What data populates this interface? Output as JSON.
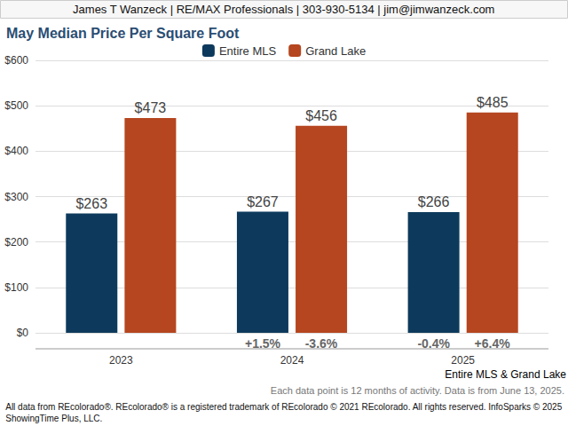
{
  "chart_data": {
    "type": "bar",
    "header": "James T Wanzeck | RE/MAX Professionals | 303-930-5134 | jim@jimwanzeck.com",
    "title": "May Median Price Per Square Foot",
    "categories": [
      "2023",
      "2024",
      "2025"
    ],
    "series": [
      {
        "name": "Entire MLS",
        "color": "#0d3a5c",
        "values": [
          263,
          267,
          266
        ],
        "value_labels": [
          "$263",
          "$267",
          "$266"
        ],
        "changes": [
          null,
          1.5,
          -0.4
        ],
        "change_labels": [
          null,
          "+1.5%",
          "-0.4%"
        ]
      },
      {
        "name": "Grand Lake",
        "color": "#b5461f",
        "values": [
          473,
          456,
          485
        ],
        "value_labels": [
          "$473",
          "$456",
          "$485"
        ],
        "changes": [
          null,
          -3.6,
          6.4
        ],
        "change_labels": [
          null,
          "-3.6%",
          "+6.4%"
        ]
      }
    ],
    "ylim": [
      0,
      600
    ],
    "yticks": [
      {
        "value": 0,
        "label": "$0"
      },
      {
        "value": 100,
        "label": "$100"
      },
      {
        "value": 200,
        "label": "$200"
      },
      {
        "value": 300,
        "label": "$300"
      },
      {
        "value": 400,
        "label": "$400"
      },
      {
        "value": 500,
        "label": "$500"
      },
      {
        "value": 600,
        "label": "$600"
      }
    ],
    "grid": true,
    "legend": "top",
    "data_labels": true,
    "caption_joiner": "&",
    "footnotes": [
      "Each data point is 12 months of activity. Data is from June 13, 2025.",
      "All data from REcolorado®. REcolorado® is a registered trademark of REcolorado © 2021 REcolorado. All rights reserved. InfoSparks © 2025",
      "ShowingTime Plus, LLC."
    ]
  }
}
